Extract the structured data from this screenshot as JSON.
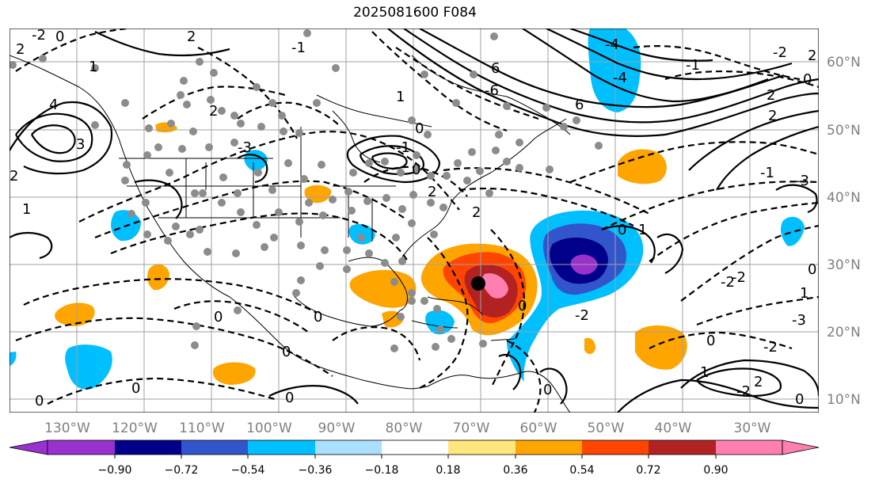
{
  "title": "2025081600 F084",
  "map": {
    "lon_labels": [
      "130°W",
      "120°W",
      "110°W",
      "100°W",
      "90°W",
      "80°W",
      "70°W",
      "60°W",
      "50°W",
      "40°W",
      "30°W"
    ],
    "lat_labels": [
      "60°N",
      "50°N",
      "40°N",
      "30°N",
      "20°N",
      "10°N"
    ],
    "contour_labels": [
      "2",
      "-2",
      "0",
      "1",
      "4",
      "-3",
      "3",
      "-1",
      "2",
      "0",
      "-1",
      "6",
      "-6",
      "-4",
      "2",
      "-3",
      "0",
      "-1",
      "-2",
      "2",
      "-1",
      "0",
      "0",
      "-2",
      "1",
      "0",
      "-2",
      "0",
      "0",
      "1",
      "-3",
      "-2"
    ],
    "marker": {
      "lon": -70.5,
      "lat": 27.0
    }
  },
  "colorbar": {
    "ticks": [
      "−0.90",
      "−0.72",
      "−0.54",
      "−0.36",
      "−0.18",
      "0.18",
      "0.36",
      "0.54",
      "0.72",
      "0.90"
    ],
    "colors": [
      "#9932cc",
      "#00008b",
      "#3355cc",
      "#00bfff",
      "#aadfff",
      "#ffffff",
      "#ffe67f",
      "#ffa500",
      "#ff4500",
      "#b22222",
      "#ff80b0"
    ]
  }
}
